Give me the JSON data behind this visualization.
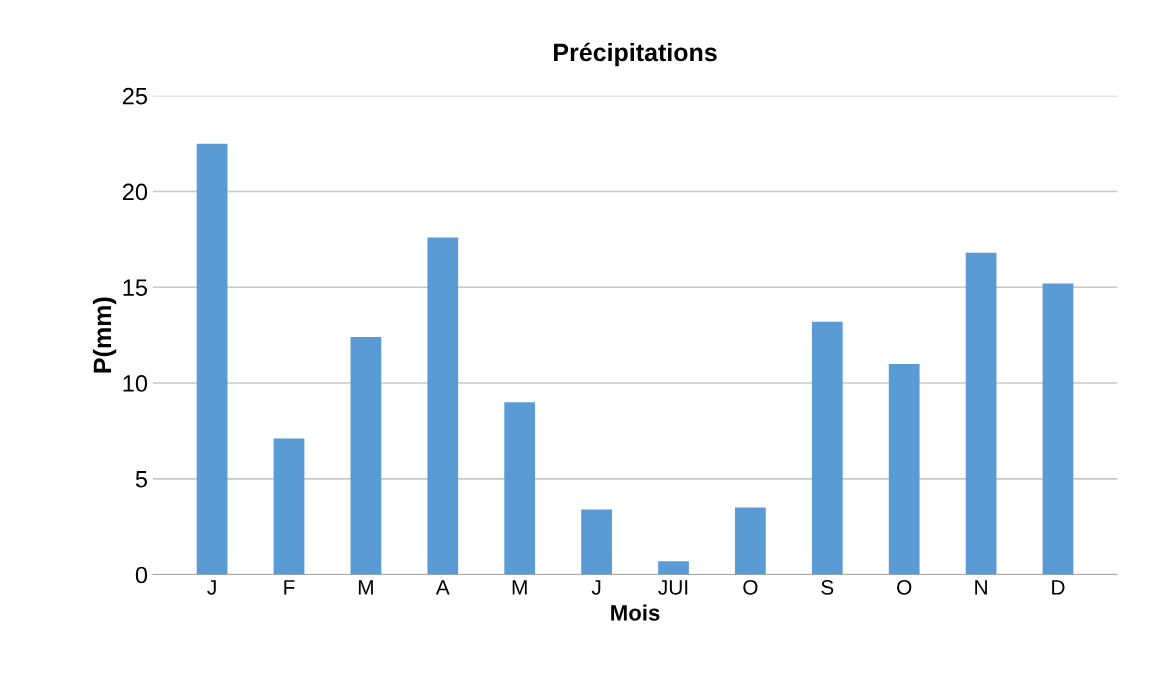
{
  "chart_data": {
    "type": "bar",
    "title": "Précipitations",
    "xlabel": "Mois",
    "ylabel": "P(mm)",
    "categories": [
      "J",
      "F",
      "M",
      "A",
      "M",
      "J",
      "JUI",
      "O",
      "S",
      "O",
      "N",
      "D"
    ],
    "values": [
      22.5,
      7.1,
      12.4,
      17.6,
      9.0,
      3.4,
      0.7,
      3.5,
      13.2,
      11.0,
      16.8,
      15.2
    ],
    "color": "#5b9bd5",
    "ylim": [
      0,
      25
    ],
    "yticks": [
      0,
      5,
      10,
      15,
      20,
      25
    ],
    "grid": "y",
    "legend": false
  }
}
